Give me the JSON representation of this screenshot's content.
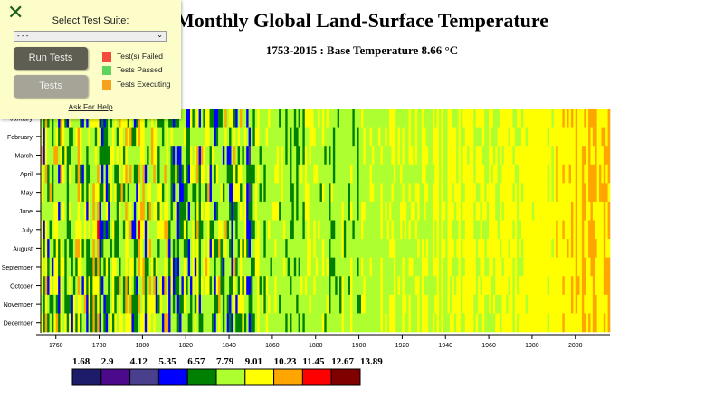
{
  "panel": {
    "close_icon": "x-icon",
    "select_label": "Select Test Suite:",
    "select_value": "- - -",
    "run_button": "Run Tests",
    "tests_button": "Tests",
    "legend": [
      {
        "label": "Test(s) Failed",
        "color": "#f44c3c"
      },
      {
        "label": "Tests Passed",
        "color": "#5ed35e"
      },
      {
        "label": "Tests Executing",
        "color": "#f5a31e"
      }
    ],
    "help_link": "Ask For Help"
  },
  "chart_data": {
    "type": "heatmap",
    "title": "Monthly Global Land-Surface Temperature",
    "subtitle": "1753-2015 : Base Temperature 8.66 °C",
    "x_range": [
      1753,
      2015
    ],
    "x_ticks": [
      "1760",
      "1780",
      "1800",
      "1820",
      "1840",
      "1860",
      "1880",
      "1900",
      "1920",
      "1940",
      "1960",
      "1980",
      "2000"
    ],
    "y_categories": [
      "January",
      "February",
      "March",
      "April",
      "May",
      "June",
      "July",
      "August",
      "September",
      "October",
      "November",
      "December"
    ],
    "base_temperature": 8.66,
    "legend_thresholds": [
      "1.68",
      "2.9",
      "4.12",
      "5.35",
      "6.57",
      "7.79",
      "9.01",
      "10.23",
      "11.45",
      "12.67",
      "13.89"
    ],
    "color_scale": [
      "#1c1c6b",
      "#4b0a8c",
      "#4a3f8c",
      "#0000ff",
      "#008000",
      "#adff2f",
      "#ffff00",
      "#ffa500",
      "#ff0000",
      "#800000"
    ]
  }
}
